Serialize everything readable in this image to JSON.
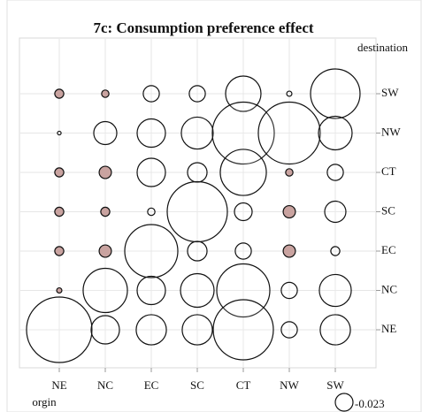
{
  "chart_data": {
    "type": "bubble",
    "title": "7c: Consumption preference effect",
    "x_label": "orgin",
    "y_label": "destination",
    "x_categories": [
      "NE",
      "NC",
      "EC",
      "SC",
      "CT",
      "NW",
      "SW"
    ],
    "y_categories": [
      "SW",
      "NW",
      "CT",
      "SC",
      "EC",
      "NC",
      "NE"
    ],
    "values": [
      [
        0.006,
        0.004,
        -0.019,
        -0.019,
        -0.092,
        -0.002,
        -0.18
      ],
      [
        -0.001,
        -0.039,
        -0.059,
        -0.075,
        -0.282,
        -0.282,
        -0.083
      ],
      [
        0.006,
        0.011,
        -0.059,
        -0.028,
        -0.156,
        0.004,
        -0.019
      ],
      [
        0.006,
        0.006,
        -0.004,
        -0.266,
        -0.023,
        0.011,
        -0.033
      ],
      [
        0.006,
        0.011,
        -0.207,
        -0.028,
        -0.019,
        0.011,
        -0.006
      ],
      [
        0.002,
        -0.144,
        -0.059,
        -0.083,
        -0.207,
        -0.019,
        -0.075
      ],
      [
        -0.315,
        -0.059,
        -0.067,
        -0.067,
        -0.266,
        -0.019,
        -0.067
      ]
    ],
    "positive_color": "#c9a3a0",
    "negative_color": "#ffffff",
    "legend_value": -0.023,
    "grid": true
  }
}
